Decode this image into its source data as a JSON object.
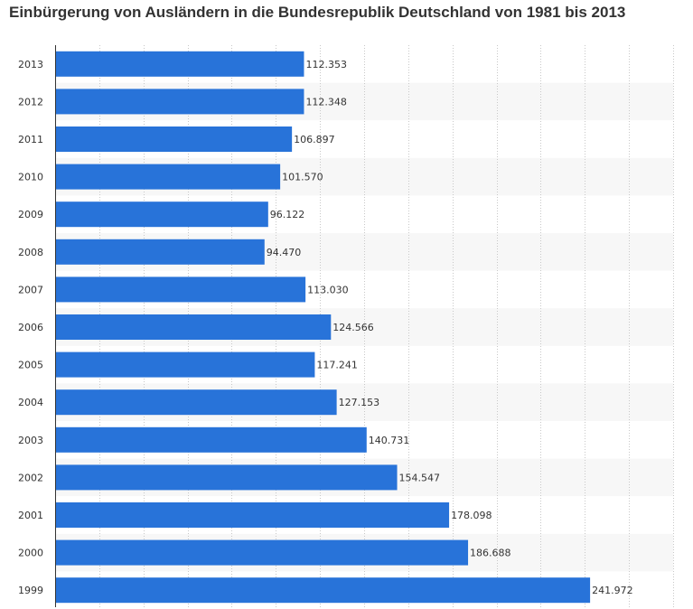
{
  "chart_data": {
    "type": "bar",
    "orientation": "horizontal",
    "title": "Einbürgerung von Ausländern in die Bundesrepublik Deutschland von 1981 bis 2013",
    "xlabel": "",
    "ylabel": "",
    "xlim": [
      0,
      280000
    ],
    "grid": true,
    "bar_color": "#2873d9",
    "categories": [
      "2013",
      "2012",
      "2011",
      "2010",
      "2009",
      "2008",
      "2007",
      "2006",
      "2005",
      "2004",
      "2003",
      "2002",
      "2001",
      "2000",
      "1999"
    ],
    "values": [
      112353,
      112348,
      106897,
      101570,
      96122,
      94470,
      113030,
      124566,
      117241,
      127153,
      140731,
      154547,
      178098,
      186688,
      241972
    ],
    "value_labels": [
      "112.353",
      "112.348",
      "106.897",
      "101.570",
      "96.122",
      "94.470",
      "113.030",
      "124.566",
      "117.241",
      "127.153",
      "140.731",
      "154.547",
      "178.098",
      "186.688",
      "241.972"
    ]
  }
}
